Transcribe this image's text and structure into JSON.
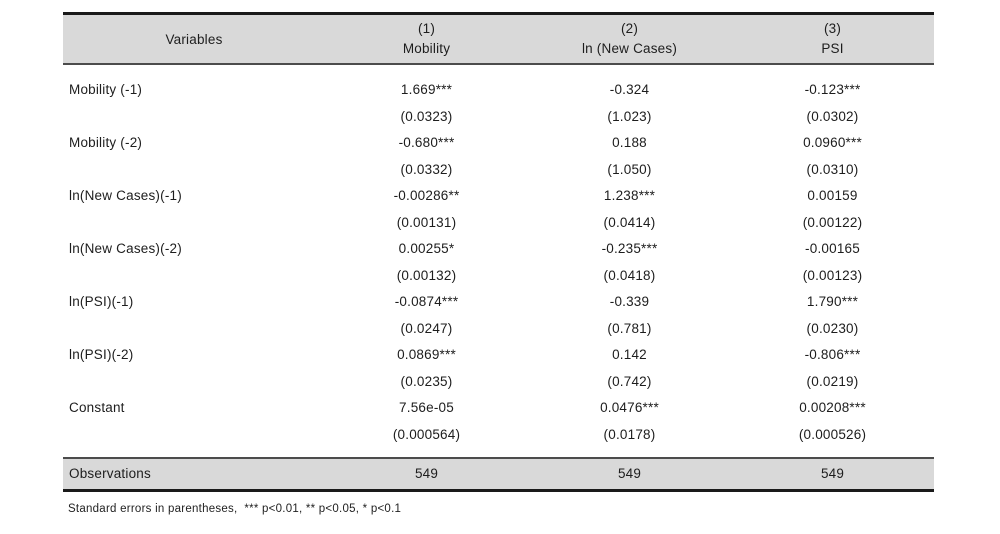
{
  "table": {
    "header": {
      "variables_label": "Variables",
      "columns": [
        {
          "number": "(1)",
          "label": "Mobility"
        },
        {
          "number": "(2)",
          "label": "ln (New Cases)"
        },
        {
          "number": "(3)",
          "label": "PSI"
        }
      ]
    },
    "rows": [
      {
        "variable": "Mobility (-1)",
        "coefficients": [
          "1.669***",
          "-0.324",
          "-0.123***"
        ],
        "std_errors": [
          "(0.0323)",
          "(1.023)",
          "(0.0302)"
        ]
      },
      {
        "variable": "Mobility (-2)",
        "coefficients": [
          "-0.680***",
          "0.188",
          "0.0960***"
        ],
        "std_errors": [
          "(0.0332)",
          "(1.050)",
          "(0.0310)"
        ]
      },
      {
        "variable": "ln(New Cases)(-1)",
        "coefficients": [
          "-0.00286**",
          "1.238***",
          "0.00159"
        ],
        "std_errors": [
          "(0.00131)",
          "(0.0414)",
          "(0.00122)"
        ]
      },
      {
        "variable": "ln(New Cases)(-2)",
        "coefficients": [
          "0.00255*",
          "-0.235***",
          "-0.00165"
        ],
        "std_errors": [
          "(0.00132)",
          "(0.0418)",
          "(0.00123)"
        ]
      },
      {
        "variable": "ln(PSI)(-1)",
        "coefficients": [
          "-0.0874***",
          "-0.339",
          "1.790***"
        ],
        "std_errors": [
          "(0.0247)",
          "(0.781)",
          "(0.0230)"
        ]
      },
      {
        "variable": "ln(PSI)(-2)",
        "coefficients": [
          "0.0869***",
          "0.142",
          "-0.806***"
        ],
        "std_errors": [
          "(0.0235)",
          "(0.742)",
          "(0.0219)"
        ]
      },
      {
        "variable": "Constant",
        "coefficients": [
          "7.56e-05",
          "0.0476***",
          "0.00208***"
        ],
        "std_errors": [
          "(0.000564)",
          "(0.0178)",
          "(0.000526)"
        ]
      }
    ],
    "summary": {
      "label": "Observations",
      "values": [
        "549",
        "549",
        "549"
      ]
    },
    "footnote": "Standard errors in parentheses,  *** p<0.01, ** p<0.05, * p<0.1"
  },
  "colors": {
    "header_bg": "#d9d9d9",
    "border_dark": "#1a1a1a",
    "border_mid": "#4c4c4c"
  }
}
